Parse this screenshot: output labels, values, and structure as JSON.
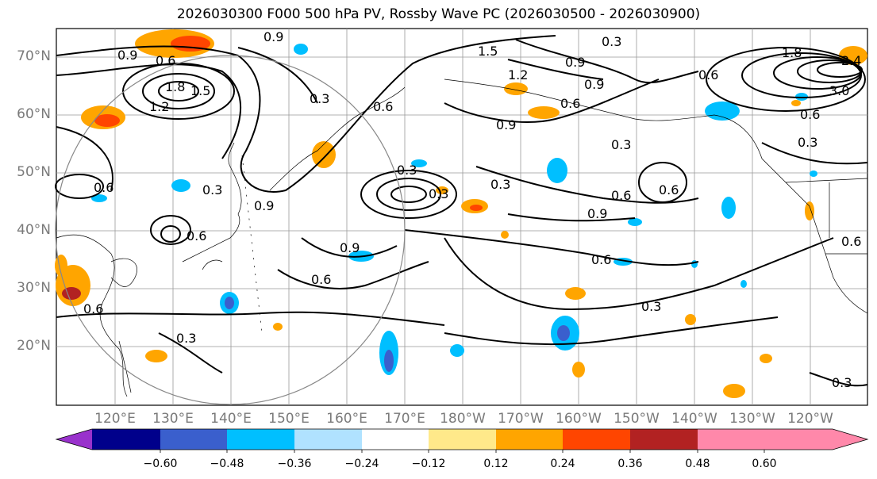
{
  "title": "2026030300 F000 500 hPa PV, Rossby Wave PC (2026030500 - 2026030900)",
  "lat_labels": [
    "70°N",
    "60°N",
    "50°N",
    "40°N",
    "30°N",
    "20°N"
  ],
  "lon_labels": [
    "120°E",
    "130°E",
    "140°E",
    "150°E",
    "160°E",
    "170°E",
    "180°W",
    "170°W",
    "160°W",
    "150°W",
    "140°W",
    "130°W",
    "120°W"
  ],
  "contour_labels": [
    "0.9",
    "0.6",
    "1.8",
    "1.5",
    "1.2",
    "0.3",
    "0.6",
    "0.9",
    "0.3",
    "0.6",
    "0.9",
    "1.5",
    "1.2",
    "0.9",
    "0.6",
    "0.9",
    "0.3",
    "0.6",
    "0.3",
    "0.6",
    "0.9",
    "0.3",
    "0.6",
    "0.3",
    "0.9",
    "0.6",
    "0.6",
    "0.3",
    "0.3",
    "0.3",
    "1.8",
    "3.0",
    "2.4",
    "0.6",
    "0.6",
    "0.3",
    "0.6",
    "0.6",
    "0.9",
    "0.3"
  ],
  "colorbar": {
    "ticks": [
      "−0.60",
      "−0.48",
      "−0.36",
      "−0.24",
      "−0.12",
      "0.12",
      "0.24",
      "0.36",
      "0.48",
      "0.60"
    ],
    "colors": [
      "#9932cc",
      "#00008b",
      "#3a5fcd",
      "#00bfff",
      "#b0e2ff",
      "#ffffff",
      "#ffe98a",
      "#ffa500",
      "#ff4500",
      "#b22222",
      "#ff88aa",
      "#ff88aa"
    ],
    "extend": "both"
  },
  "colors": {
    "contour": "#000000",
    "grid": "#999999",
    "axis_label": "#7a7a7a",
    "circle": "#888888"
  }
}
